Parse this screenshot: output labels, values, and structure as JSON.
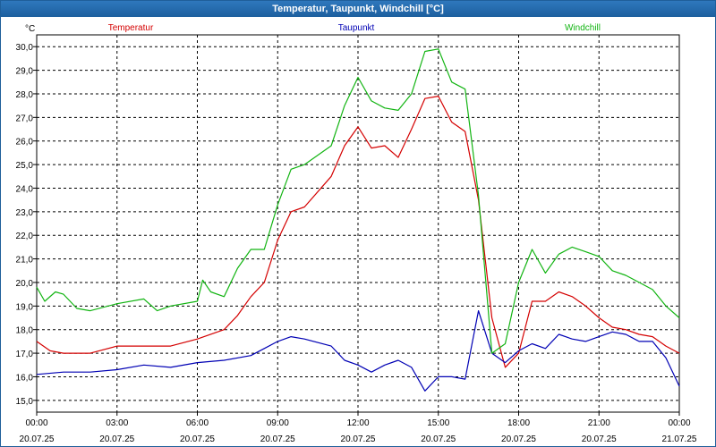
{
  "window": {
    "title": "Temperatur, Taupunkt, Windchill [°C]"
  },
  "colors": {
    "titlebar": "#1f6aae",
    "temperature": "#d40000",
    "dewpoint": "#0000b4",
    "windchill": "#12b412",
    "grid": "#000000"
  },
  "chart_data": {
    "type": "line",
    "title": "Temperatur, Taupunkt, Windchill [°C]",
    "ylabel": "°C",
    "xlabel": "",
    "ylim": [
      14.5,
      30.5
    ],
    "yticks": [
      "15,0",
      "16,0",
      "17,0",
      "18,0",
      "19,0",
      "20,0",
      "21,0",
      "22,0",
      "23,0",
      "24,0",
      "25,0",
      "26,0",
      "27,0",
      "28,0",
      "29,0",
      "30,0"
    ],
    "yvalues": [
      15,
      16,
      17,
      18,
      19,
      20,
      21,
      22,
      23,
      24,
      25,
      26,
      27,
      28,
      29,
      30
    ],
    "xlim": [
      0,
      24
    ],
    "xticks": [
      {
        "time": "00:00",
        "date": "20.07.25"
      },
      {
        "time": "03:00",
        "date": "20.07.25"
      },
      {
        "time": "06:00",
        "date": "20.07.25"
      },
      {
        "time": "09:00",
        "date": "20.07.25"
      },
      {
        "time": "12:00",
        "date": "20.07.25"
      },
      {
        "time": "15:00",
        "date": "20.07.25"
      },
      {
        "time": "18:00",
        "date": "20.07.25"
      },
      {
        "time": "21:00",
        "date": "20.07.25"
      },
      {
        "time": "00:00",
        "date": "21.07.25"
      }
    ],
    "grid": true,
    "legend_placement": "top",
    "series": [
      {
        "name": "Temperatur",
        "color": "#d40000",
        "x": [
          0,
          0.5,
          1,
          2,
          3,
          4,
          5,
          6,
          7,
          7.5,
          8,
          8.5,
          9,
          9.5,
          10,
          11,
          11.5,
          12,
          12.5,
          13,
          13.5,
          14,
          14.5,
          15,
          15.5,
          16,
          16.5,
          17,
          17.5,
          18,
          18.5,
          19,
          19.5,
          20,
          20.5,
          21,
          21.5,
          22,
          22.5,
          23,
          23.5,
          24
        ],
        "y": [
          17.5,
          17.1,
          17.0,
          17.0,
          17.3,
          17.3,
          17.3,
          17.6,
          18.0,
          18.6,
          19.4,
          20.0,
          21.8,
          23.0,
          23.2,
          24.5,
          25.8,
          26.6,
          25.7,
          25.8,
          25.3,
          26.5,
          27.8,
          27.9,
          26.8,
          26.4,
          23.5,
          18.5,
          16.4,
          17.0,
          19.2,
          19.2,
          19.6,
          19.4,
          19.0,
          18.5,
          18.1,
          18.0,
          17.8,
          17.7,
          17.3,
          17.0
        ]
      },
      {
        "name": "Taupunkt",
        "color": "#0000b4",
        "x": [
          0,
          1,
          2,
          3,
          4,
          5,
          6,
          7,
          8,
          8.5,
          9,
          9.5,
          10,
          11,
          11.5,
          12,
          12.5,
          13,
          13.5,
          14,
          14.5,
          15,
          15.5,
          16,
          16.5,
          17,
          17.5,
          18,
          18.5,
          19,
          19.5,
          20,
          20.5,
          21,
          21.5,
          22,
          22.5,
          23,
          23.5,
          24
        ],
        "y": [
          16.1,
          16.2,
          16.2,
          16.3,
          16.5,
          16.4,
          16.6,
          16.7,
          16.9,
          17.2,
          17.5,
          17.7,
          17.6,
          17.3,
          16.7,
          16.5,
          16.2,
          16.5,
          16.7,
          16.4,
          15.4,
          16.0,
          16.0,
          15.9,
          18.8,
          17.0,
          16.6,
          17.1,
          17.4,
          17.2,
          17.8,
          17.6,
          17.5,
          17.7,
          17.9,
          17.8,
          17.5,
          17.5,
          16.8,
          15.6
        ]
      },
      {
        "name": "Windchill",
        "color": "#12b412",
        "x": [
          0,
          0.3,
          0.7,
          1,
          1.5,
          2,
          3,
          4,
          4.5,
          5,
          6,
          6.2,
          6.5,
          7,
          7.5,
          8,
          8.5,
          9,
          9.5,
          10,
          11,
          11.5,
          12,
          12.5,
          13,
          13.5,
          14,
          14.5,
          15,
          15.5,
          16,
          16.5,
          17,
          17.5,
          18,
          18.5,
          19,
          19.5,
          20,
          20.5,
          21,
          21.5,
          22,
          22.5,
          23,
          23.5,
          24
        ],
        "y": [
          19.8,
          19.2,
          19.6,
          19.5,
          18.9,
          18.8,
          19.1,
          19.3,
          18.8,
          19.0,
          19.2,
          20.1,
          19.6,
          19.4,
          20.6,
          21.4,
          21.4,
          23.3,
          24.8,
          25.0,
          25.8,
          27.5,
          28.7,
          27.7,
          27.4,
          27.3,
          28.0,
          29.8,
          29.9,
          28.5,
          28.2,
          23.7,
          17.0,
          17.4,
          20.0,
          21.4,
          20.4,
          21.2,
          21.5,
          21.3,
          21.1,
          20.5,
          20.3,
          20.0,
          19.7,
          19.0,
          18.5
        ]
      }
    ]
  }
}
